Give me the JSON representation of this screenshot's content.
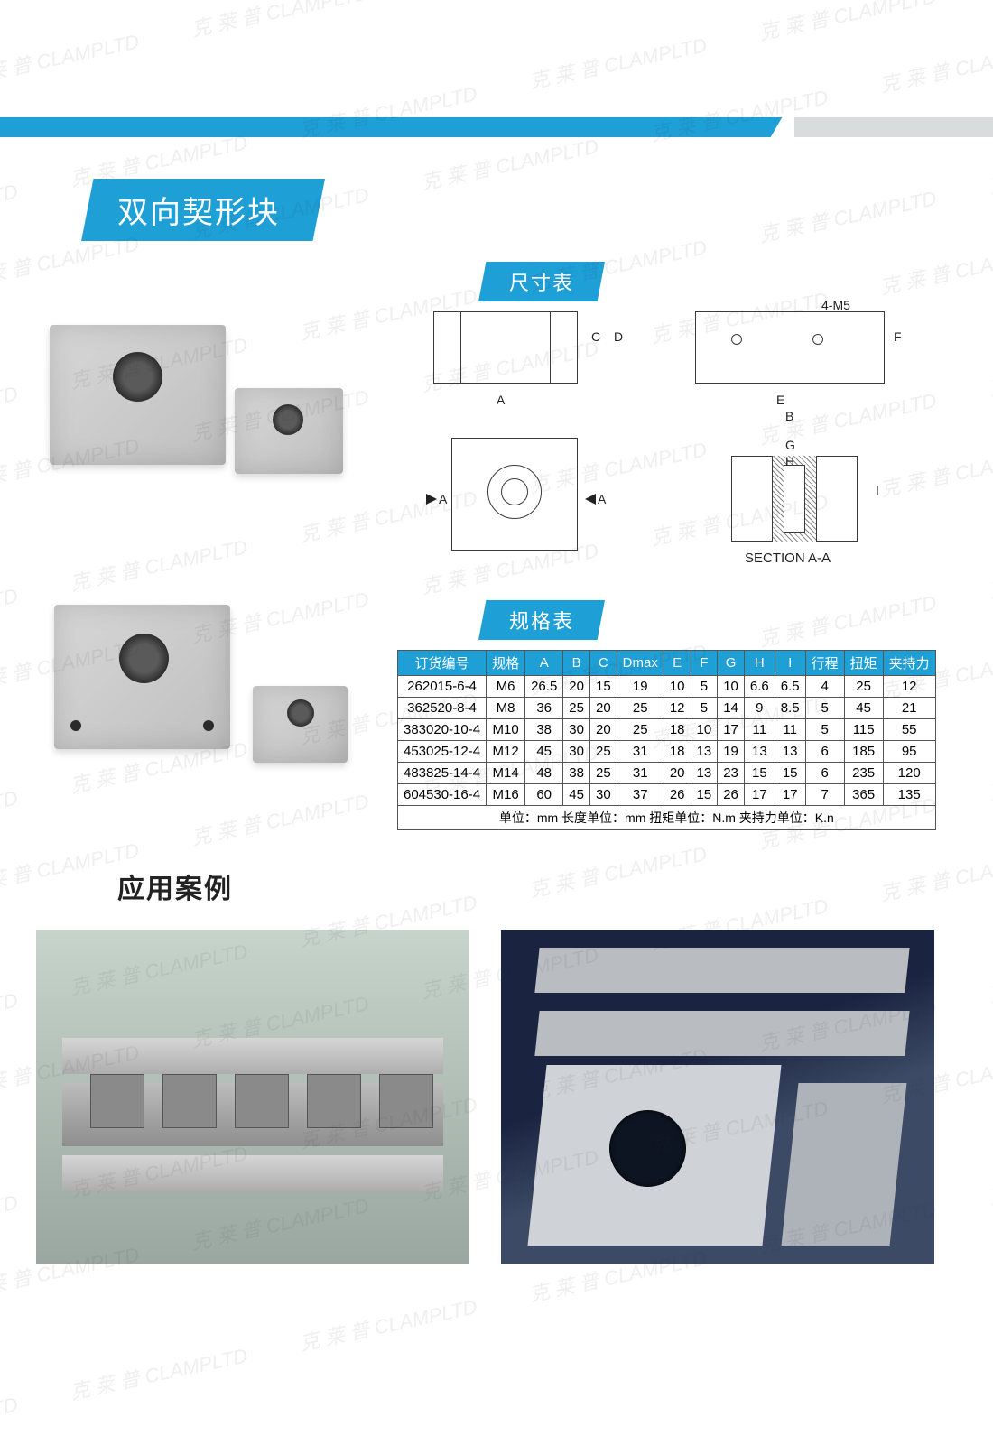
{
  "page": {
    "title": "双向契形块",
    "dimension_heading": "尺寸表",
    "spec_heading": "规格表",
    "cases_heading": "应用案例",
    "section_label": "SECTION A-A"
  },
  "colors": {
    "accent": "#1e9fd6",
    "divider_grey": "#d9dcdd",
    "text": "#222222",
    "table_border": "#555555",
    "bg": "#ffffff"
  },
  "watermark": {
    "text": "克 莱 普 CLAMPLTD",
    "angle_deg": -12,
    "opacity": 0.08
  },
  "diagram": {
    "labels": [
      "A",
      "B",
      "C",
      "D",
      "E",
      "F",
      "G",
      "H",
      "I"
    ],
    "callout": "4-M5",
    "section_arrows": "A"
  },
  "spec_table": {
    "columns": [
      "订货编号",
      "规格",
      "A",
      "B",
      "C",
      "Dmax",
      "E",
      "F",
      "G",
      "H",
      "I",
      "行程",
      "扭矩",
      "夹持力"
    ],
    "rows": [
      [
        "262015-6-4",
        "M6",
        "26.5",
        "20",
        "15",
        "19",
        "10",
        "5",
        "10",
        "6.6",
        "6.5",
        "4",
        "25",
        "12"
      ],
      [
        "362520-8-4",
        "M8",
        "36",
        "25",
        "20",
        "25",
        "12",
        "5",
        "14",
        "9",
        "8.5",
        "5",
        "45",
        "21"
      ],
      [
        "383020-10-4",
        "M10",
        "38",
        "30",
        "20",
        "25",
        "18",
        "10",
        "17",
        "11",
        "11",
        "5",
        "115",
        "55"
      ],
      [
        "453025-12-4",
        "M12",
        "45",
        "30",
        "25",
        "31",
        "18",
        "13",
        "19",
        "13",
        "13",
        "6",
        "185",
        "95"
      ],
      [
        "483825-14-4",
        "M14",
        "48",
        "38",
        "25",
        "31",
        "20",
        "13",
        "23",
        "15",
        "15",
        "6",
        "235",
        "120"
      ],
      [
        "604530-16-4",
        "M16",
        "60",
        "45",
        "30",
        "37",
        "26",
        "15",
        "26",
        "17",
        "17",
        "7",
        "365",
        "135"
      ]
    ],
    "units_note": "单位：mm  长度单位：mm  扭矩单位：N.m  夹持力单位：K.n"
  }
}
